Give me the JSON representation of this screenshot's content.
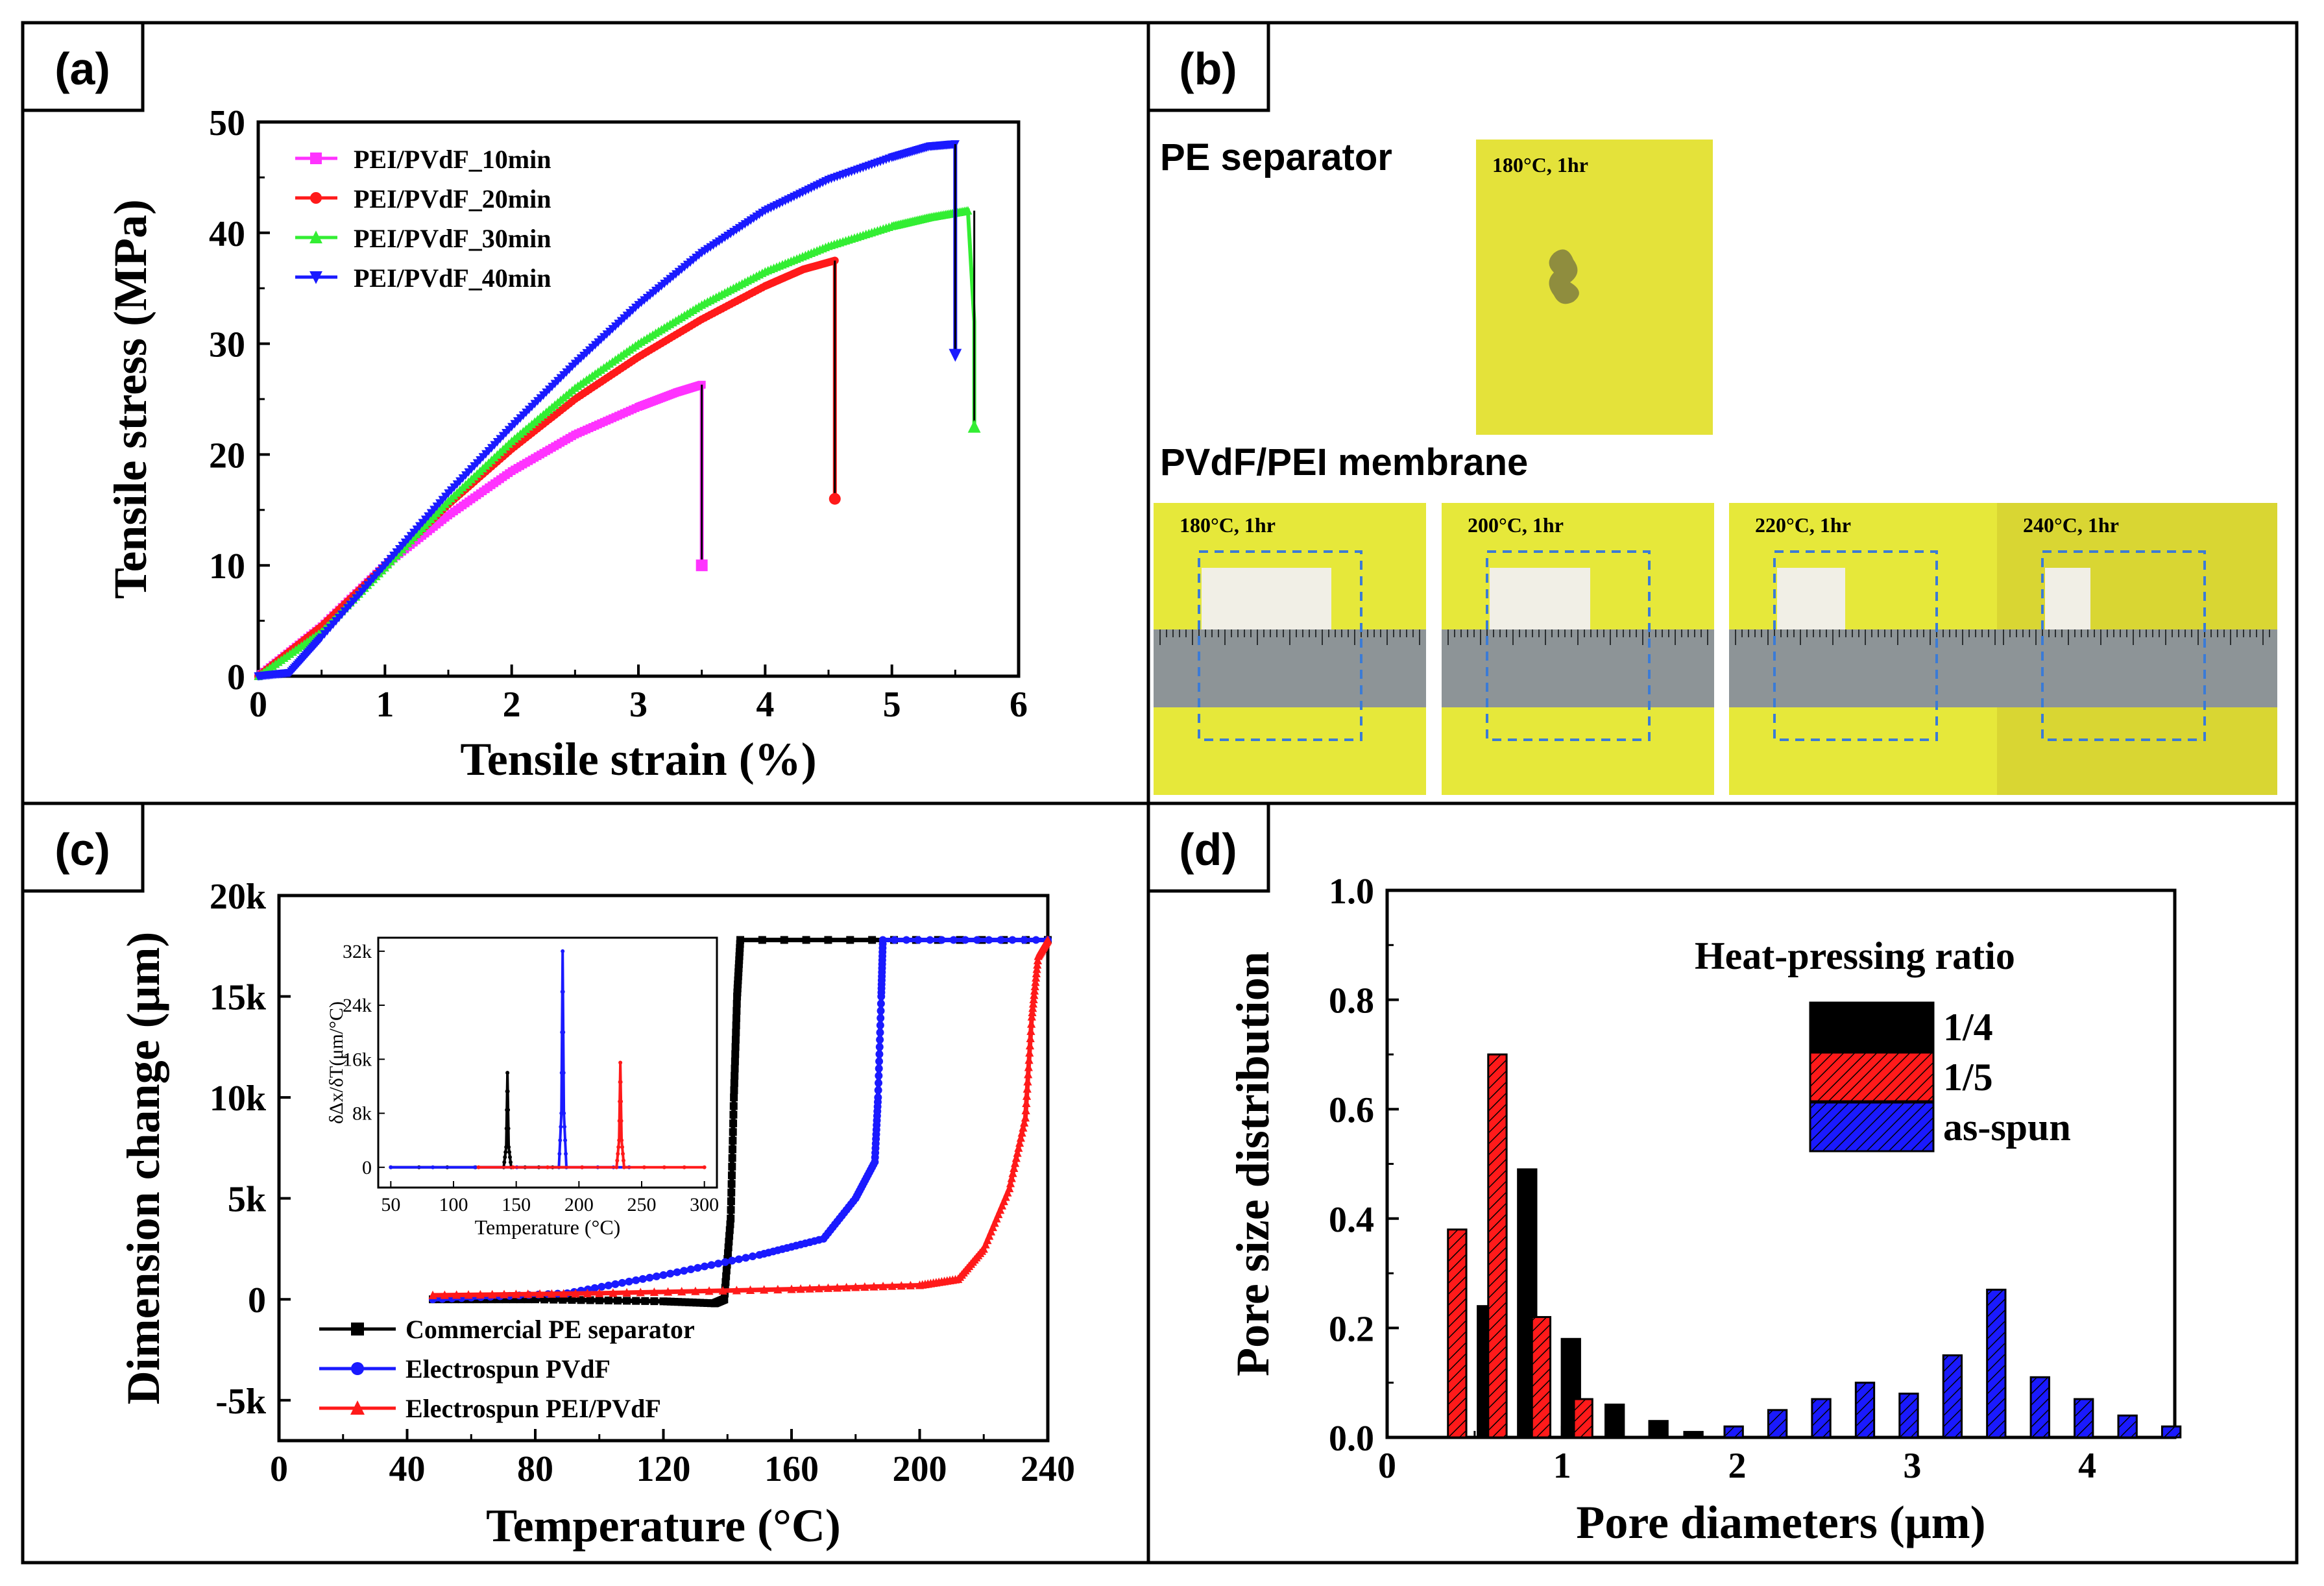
{
  "panels": {
    "a": {
      "label": "(a)"
    },
    "b": {
      "label": "(b)",
      "pe_title": "PE separator",
      "pe_photo_label": "180°C, 1hr",
      "membrane_title": "PVdF/PEI membrane",
      "photos": [
        "180°C, 1hr",
        "200°C, 1hr",
        "220°C, 1hr",
        "240°C, 1hr"
      ]
    },
    "c": {
      "label": "(c)"
    },
    "d": {
      "label": "(d)"
    }
  },
  "colors": {
    "magenta": "#ff33ff",
    "red": "#ff1a1a",
    "green": "#33ee33",
    "blue": "#1a1aff",
    "black": "#000000",
    "yellow": "#e6e83a",
    "yellow_dark": "#d8d530"
  },
  "chart_data": [
    {
      "id": "a",
      "type": "line",
      "xlabel": "Tensile strain (%)",
      "ylabel": "Tensile stress (MPa)",
      "xlim": [
        0,
        6
      ],
      "ylim": [
        0,
        50
      ],
      "xticks": [
        "0",
        "1",
        "2",
        "3",
        "4",
        "5",
        "6"
      ],
      "yticks": [
        "0",
        "10",
        "20",
        "30",
        "40",
        "50"
      ],
      "legend_position": "top-left",
      "series": [
        {
          "name": "PEI/PVdF_10min",
          "color": "#ff33ff",
          "marker": "square",
          "x": [
            0,
            0.5,
            1,
            1.5,
            2,
            2.5,
            3,
            3.3,
            3.5,
            3.5,
            3.5
          ],
          "y": [
            0,
            4.5,
            10,
            14.5,
            18.5,
            21.8,
            24.3,
            25.6,
            26.3,
            18,
            10
          ]
        },
        {
          "name": "PEI/PVdF_20min",
          "color": "#ff1a1a",
          "marker": "circle",
          "x": [
            0,
            0.5,
            1,
            1.5,
            2,
            2.5,
            3,
            3.5,
            4,
            4.3,
            4.55,
            4.55,
            4.55
          ],
          "y": [
            0,
            4.5,
            10,
            15.5,
            20.5,
            25,
            28.8,
            32.2,
            35.2,
            36.7,
            37.5,
            27,
            16
          ]
        },
        {
          "name": "PEI/PVdF_30min",
          "color": "#33ee33",
          "marker": "triangle-up",
          "x": [
            0,
            0.5,
            1,
            1.5,
            2,
            2.5,
            3,
            3.5,
            4,
            4.5,
            5,
            5.3,
            5.6,
            5.65,
            5.65
          ],
          "y": [
            0,
            4,
            9.8,
            15.8,
            21.2,
            26,
            30,
            33.5,
            36.5,
            38.8,
            40.6,
            41.4,
            42,
            32,
            22.5
          ]
        },
        {
          "name": "PEI/PVdF_40min",
          "color": "#1a1aff",
          "marker": "triangle-down",
          "x": [
            0,
            0.25,
            0.5,
            1,
            1.5,
            2,
            2.5,
            3,
            3.5,
            4,
            4.5,
            5,
            5.3,
            5.5,
            5.5,
            5.5
          ],
          "y": [
            0,
            0.3,
            3.5,
            10,
            16.5,
            22.5,
            28.2,
            33.5,
            38.2,
            42,
            44.8,
            46.8,
            47.8,
            48,
            38,
            29
          ]
        }
      ]
    },
    {
      "id": "c",
      "type": "line",
      "xlabel": "Temperature (°C)",
      "ylabel": "Dimension change (μm)",
      "xlim": [
        0,
        240
      ],
      "ylim": [
        -7000,
        20000
      ],
      "xticks": [
        "0",
        "40",
        "80",
        "120",
        "160",
        "200",
        "240"
      ],
      "yticks": [
        "-5k",
        "0",
        "5k",
        "10k",
        "15k",
        "20k"
      ],
      "ytick_values": [
        -5000,
        0,
        5000,
        10000,
        15000,
        20000
      ],
      "legend_position": "bottom-left",
      "series": [
        {
          "name": "Commercial PE separator",
          "color": "#000000",
          "marker": "square",
          "x": [
            48,
            80,
            120,
            136,
            139,
            141,
            142,
            143,
            144,
            240
          ],
          "y": [
            0,
            0,
            -100,
            -200,
            0,
            4000,
            10000,
            15000,
            17800,
            17800
          ]
        },
        {
          "name": "Electrospun PVdF",
          "color": "#1a1aff",
          "marker": "circle",
          "x": [
            48,
            90,
            120,
            150,
            170,
            180,
            186,
            187,
            188,
            188.5,
            240
          ],
          "y": [
            0,
            300,
            1200,
            2200,
            3000,
            5000,
            6800,
            10000,
            15000,
            17800,
            17800
          ]
        },
        {
          "name": "Electrospun PEI/PVdF",
          "color": "#ff1a1a",
          "marker": "triangle-up",
          "x": [
            48,
            100,
            160,
            200,
            212,
            220,
            228,
            233,
            235,
            237,
            240
          ],
          "y": [
            200,
            300,
            500,
            700,
            1000,
            2500,
            5500,
            9000,
            14000,
            17000,
            17800
          ]
        }
      ],
      "inset": {
        "type": "line",
        "xlabel": "Temperature (°C)",
        "ylabel": "δΔx/δT(μm/°C)",
        "xlim": [
          40,
          310
        ],
        "ylim": [
          -3000,
          34000
        ],
        "xticks": [
          "50",
          "100",
          "150",
          "200",
          "250",
          "300"
        ],
        "xtick_values": [
          50,
          100,
          150,
          200,
          250,
          300
        ],
        "yticks": [
          "0",
          "8k",
          "16k",
          "24k",
          "32k"
        ],
        "ytick_values": [
          0,
          8000,
          16000,
          24000,
          32000
        ],
        "series": [
          {
            "name": "Commercial PE separator",
            "color": "#000000",
            "x": [
              50,
              140,
              142,
              143,
              144,
              146,
              190
            ],
            "y": [
              0,
              0,
              3000,
              14000,
              3000,
              0,
              0
            ]
          },
          {
            "name": "Electrospun PVdF",
            "color": "#1a1aff",
            "x": [
              50,
              184,
              186,
              187,
              188,
              190,
              240
            ],
            "y": [
              0,
              0,
              8000,
              32000,
              8000,
              0,
              0
            ]
          },
          {
            "name": "Electrospun PEI/PVdF",
            "color": "#ff1a1a",
            "x": [
              120,
              230,
              232,
              233,
              234,
              236,
              300
            ],
            "y": [
              0,
              0,
              4000,
              15500,
              4000,
              0,
              0
            ]
          }
        ]
      }
    },
    {
      "id": "d",
      "type": "bar",
      "xlabel": "Pore diameters (μm)",
      "ylabel": "Pore size distribution",
      "xlim": [
        0,
        4.5
      ],
      "ylim": [
        0,
        1.0
      ],
      "xticks": [
        "0",
        "1",
        "2",
        "3",
        "4"
      ],
      "yticks": [
        "0.0",
        "0.2",
        "0.4",
        "0.6",
        "0.8",
        "1.0"
      ],
      "legend_title": "Heat-pressing ratio",
      "legend_position": "top-right",
      "series": [
        {
          "name": "1/4",
          "color": "#000000",
          "x": [
            0.57,
            0.8,
            1.05,
            1.3,
            1.55,
            1.75
          ],
          "values": [
            0.24,
            0.49,
            0.18,
            0.06,
            0.03,
            0.01
          ]
        },
        {
          "name": "1/5",
          "color": "#ff1a1a",
          "x": [
            0.4,
            0.63,
            0.88,
            1.12
          ],
          "values": [
            0.38,
            0.7,
            0.22,
            0.07
          ]
        },
        {
          "name": "as-spun",
          "color": "#1a1aff",
          "x": [
            1.98,
            2.23,
            2.48,
            2.73,
            2.98,
            3.23,
            3.48,
            3.73,
            3.98,
            4.23,
            4.48
          ],
          "values": [
            0.02,
            0.05,
            0.07,
            0.1,
            0.08,
            0.15,
            0.27,
            0.11,
            0.07,
            0.04,
            0.02
          ]
        }
      ]
    }
  ]
}
